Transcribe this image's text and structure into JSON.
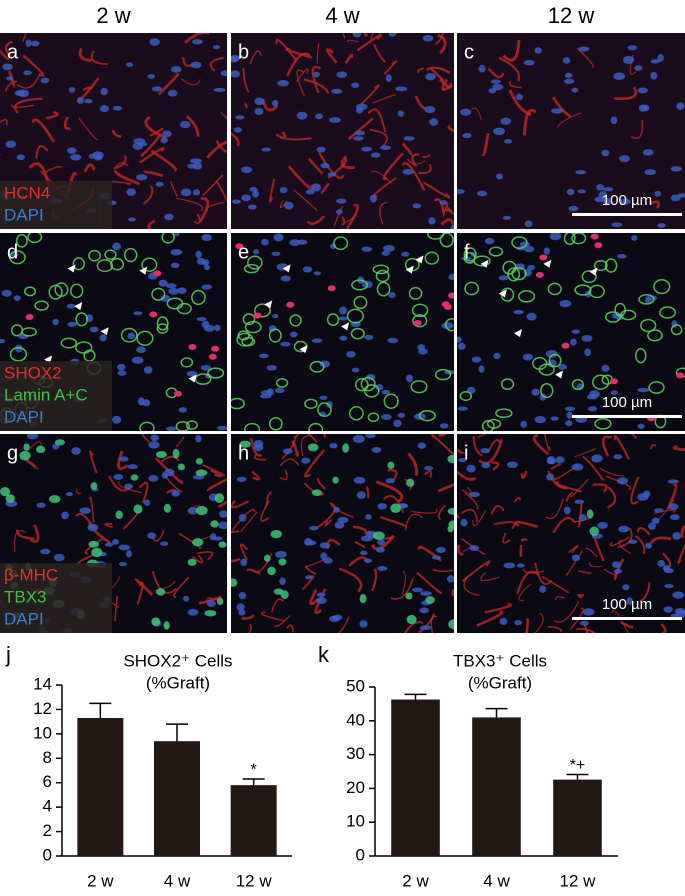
{
  "figure": {
    "column_headers": [
      "2 w",
      "4 w",
      "12 w"
    ],
    "panels": [
      {
        "letter": "a",
        "labels": [
          {
            "text": "HCN4",
            "color": "#e8302a"
          },
          {
            "text": "DAPI",
            "color": "#3b7fd6"
          }
        ]
      },
      {
        "letter": "b"
      },
      {
        "letter": "c",
        "scale_bar": "100 µm"
      },
      {
        "letter": "d",
        "labels": [
          {
            "text": "SHOX2",
            "color": "#e8302a"
          },
          {
            "text": "Lamin A+C",
            "color": "#3fc23f"
          },
          {
            "text": "DAPI",
            "color": "#3b7fd6"
          }
        ]
      },
      {
        "letter": "e"
      },
      {
        "letter": "f",
        "scale_bar": "100 µm"
      },
      {
        "letter": "g",
        "labels": [
          {
            "text": "β-MHC",
            "color": "#e8302a"
          },
          {
            "text": "TBX3",
            "color": "#3fc23f"
          },
          {
            "text": "DAPI",
            "color": "#3b7fd6"
          }
        ]
      },
      {
        "letter": "h"
      },
      {
        "letter": "i",
        "scale_bar": "100 µm"
      }
    ]
  },
  "chart_data": [
    {
      "type": "bar",
      "panel_label": "j",
      "title": "SHOX2⁺ Cells",
      "subtitle": "(%Graft)",
      "categories": [
        "2 w",
        "4 w",
        "12 w"
      ],
      "values": [
        11.3,
        9.4,
        5.8
      ],
      "errors": [
        1.2,
        1.4,
        0.5
      ],
      "color": "#231815",
      "ylim": [
        0,
        14
      ],
      "yticks": [
        0,
        2,
        4,
        6,
        8,
        10,
        12,
        14
      ],
      "annotations": [
        {
          "category": "12 w",
          "text": "*"
        }
      ]
    },
    {
      "type": "bar",
      "panel_label": "k",
      "title": "TBX3⁺ Cells",
      "subtitle": "(%Graft)",
      "categories": [
        "2 w",
        "4 w",
        "12 w"
      ],
      "values": [
        46.3,
        41.0,
        22.6
      ],
      "errors": [
        1.5,
        2.6,
        1.5
      ],
      "color": "#231815",
      "ylim": [
        0,
        50
      ],
      "yticks": [
        0,
        10,
        20,
        30,
        40,
        50
      ],
      "annotations": [
        {
          "category": "12 w",
          "text": "*+"
        }
      ]
    }
  ]
}
